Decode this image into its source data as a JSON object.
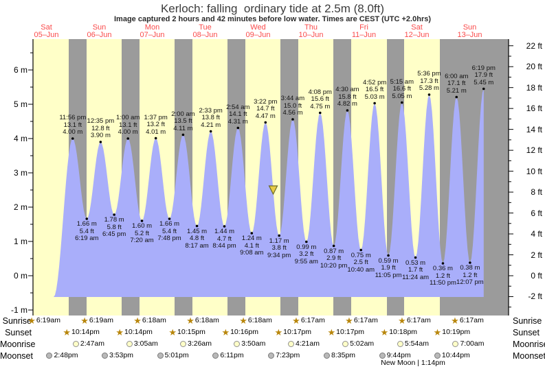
{
  "title": "Kerloch: falling  ordinary tide at 2.5m (8.0ft)",
  "subtitle": "Image captured 2 hours and 42 minutes before low water. Times are CEST (UTC +2.0hrs)",
  "days": [
    {
      "label": "Sat",
      "date": "05–Jun"
    },
    {
      "label": "Sun",
      "date": "06–Jun"
    },
    {
      "label": "Mon",
      "date": "07–Jun"
    },
    {
      "label": "Tue",
      "date": "08–Jun"
    },
    {
      "label": "Wed",
      "date": "09–Jun"
    },
    {
      "label": "Thu",
      "date": "10–Jun"
    },
    {
      "label": "Fri",
      "date": "11–Jun"
    },
    {
      "label": "Sat",
      "date": "12–Jun"
    },
    {
      "label": "Sun",
      "date": "13–Jun"
    }
  ],
  "chart_data": {
    "type": "area",
    "title": "Kerloch: falling  ordinary tide at 2.5m (8.0ft)",
    "ylabel_left": "meters",
    "ylabel_right": "feet",
    "ylim_m": [
      -1,
      6
    ],
    "ylim_ft": [
      -2,
      22
    ],
    "x_axis": "dates 05-Jun to 13-Jun, gridless, gray night bands from sunset to sunrise",
    "tide_events": [
      {
        "kind": "high",
        "day": 0,
        "time": "11:56 pm",
        "m": 4.0,
        "ft": 13.1
      },
      {
        "kind": "low",
        "day": 1,
        "time": "6:19 am",
        "m": 1.66,
        "ft": 5.4
      },
      {
        "kind": "high",
        "day": 1,
        "time": "12:35 pm",
        "m": 3.9,
        "ft": 12.8
      },
      {
        "kind": "low",
        "day": 1,
        "time": "6:45 pm",
        "m": 1.78,
        "ft": 5.8
      },
      {
        "kind": "high",
        "day": 2,
        "time": "1:00 am",
        "m": 4.0,
        "ft": 13.1
      },
      {
        "kind": "low",
        "day": 2,
        "time": "7:20 am",
        "m": 1.6,
        "ft": 5.2
      },
      {
        "kind": "high",
        "day": 2,
        "time": "1:37 pm",
        "m": 4.01,
        "ft": 13.2
      },
      {
        "kind": "low",
        "day": 2,
        "time": "7:48 pm",
        "m": 1.66,
        "ft": 5.4
      },
      {
        "kind": "high",
        "day": 3,
        "time": "2:00 am",
        "m": 4.11,
        "ft": 13.5
      },
      {
        "kind": "low",
        "day": 3,
        "time": "8:17 am",
        "m": 1.45,
        "ft": 4.8
      },
      {
        "kind": "high",
        "day": 3,
        "time": "2:33 pm",
        "m": 4.21,
        "ft": 13.8
      },
      {
        "kind": "low",
        "day": 3,
        "time": "8:44 pm",
        "m": 1.44,
        "ft": 4.7
      },
      {
        "kind": "high",
        "day": 4,
        "time": "2:54 am",
        "m": 4.31,
        "ft": 14.1
      },
      {
        "kind": "low",
        "day": 4,
        "time": "9:08 am",
        "m": 1.24,
        "ft": 4.1
      },
      {
        "kind": "high",
        "day": 4,
        "time": "3:22 pm",
        "m": 4.47,
        "ft": 14.7
      },
      {
        "kind": "low",
        "day": 4,
        "time": "9:34 pm",
        "m": 1.17,
        "ft": 3.8
      },
      {
        "kind": "high",
        "day": 5,
        "time": "3:44 am",
        "m": 4.56,
        "ft": 15.0
      },
      {
        "kind": "low",
        "day": 5,
        "time": "9:55 am",
        "m": 0.99,
        "ft": 3.2
      },
      {
        "kind": "high",
        "day": 5,
        "time": "4:08 pm",
        "m": 4.75,
        "ft": 15.6
      },
      {
        "kind": "low",
        "day": 5,
        "time": "10:20 pm",
        "m": 0.87,
        "ft": 2.9
      },
      {
        "kind": "high",
        "day": 6,
        "time": "4:30 am",
        "m": 4.82,
        "ft": 15.8
      },
      {
        "kind": "low",
        "day": 6,
        "time": "10:40 am",
        "m": 0.75,
        "ft": 2.5
      },
      {
        "kind": "high",
        "day": 6,
        "time": "4:52 pm",
        "m": 5.03,
        "ft": 16.5
      },
      {
        "kind": "low",
        "day": 6,
        "time": "11:05 pm",
        "m": 0.59,
        "ft": 1.9
      },
      {
        "kind": "high",
        "day": 7,
        "time": "5:15 am",
        "m": 5.05,
        "ft": 16.6
      },
      {
        "kind": "low",
        "day": 7,
        "time": "11:24 am",
        "m": 0.53,
        "ft": 1.7
      },
      {
        "kind": "high",
        "day": 7,
        "time": "5:36 pm",
        "m": 5.28,
        "ft": 17.3
      },
      {
        "kind": "low",
        "day": 7,
        "time": "11:50 pm",
        "m": 0.36,
        "ft": 1.2
      },
      {
        "kind": "high",
        "day": 8,
        "time": "6:00 am",
        "m": 5.21,
        "ft": 17.1
      },
      {
        "kind": "low",
        "day": 8,
        "time": "12:07 pm",
        "m": 0.38,
        "ft": 1.2
      },
      {
        "kind": "high",
        "day": 8,
        "time": "6:19 pm",
        "m": 5.45,
        "ft": 17.9
      }
    ],
    "current_marker": {
      "day": 4,
      "time": "6:52 pm",
      "level_m": 2.5
    }
  },
  "astro": {
    "row_labels": [
      "Sunrise",
      "Sunset",
      "Moonrise",
      "Moonset"
    ],
    "sunrise": [
      {
        "day": 0,
        "time": "6:19am"
      },
      {
        "day": 1,
        "time": "6:19am"
      },
      {
        "day": 2,
        "time": "6:18am"
      },
      {
        "day": 3,
        "time": "6:18am"
      },
      {
        "day": 4,
        "time": "6:18am"
      },
      {
        "day": 5,
        "time": "6:17am"
      },
      {
        "day": 6,
        "time": "6:17am"
      },
      {
        "day": 7,
        "time": "6:17am"
      },
      {
        "day": 8,
        "time": "6:17am"
      }
    ],
    "sunset": [
      {
        "day": 0,
        "time": "10:14pm"
      },
      {
        "day": 1,
        "time": "10:14pm"
      },
      {
        "day": 2,
        "time": "10:15pm"
      },
      {
        "day": 3,
        "time": "10:16pm"
      },
      {
        "day": 4,
        "time": "10:17pm"
      },
      {
        "day": 5,
        "time": "10:17pm"
      },
      {
        "day": 6,
        "time": "10:18pm"
      },
      {
        "day": 7,
        "time": "10:19pm"
      }
    ],
    "moonrise": [
      {
        "day": 1,
        "time": "2:47am"
      },
      {
        "day": 2,
        "time": "3:05am"
      },
      {
        "day": 3,
        "time": "3:26am"
      },
      {
        "day": 4,
        "time": "3:50am"
      },
      {
        "day": 5,
        "time": "4:21am"
      },
      {
        "day": 6,
        "time": "5:02am"
      },
      {
        "day": 7,
        "time": "5:54am"
      },
      {
        "day": 8,
        "time": "7:00am"
      }
    ],
    "moonset": [
      {
        "day": 0,
        "time": "2:48pm"
      },
      {
        "day": 1,
        "time": "3:53pm"
      },
      {
        "day": 2,
        "time": "5:01pm"
      },
      {
        "day": 3,
        "time": "6:11pm"
      },
      {
        "day": 4,
        "time": "7:23pm"
      },
      {
        "day": 5,
        "time": "8:35pm"
      },
      {
        "day": 6,
        "time": "9:44pm"
      },
      {
        "day": 7,
        "time": "10:44pm"
      }
    ],
    "new_moon": "New Moon | 1:14pm"
  },
  "colors": {
    "day_bg": "#ffffc8",
    "night_bg": "#9b9b9b",
    "tide_fill": "#a9aefa",
    "day_label": "#fa4a4a",
    "star": "#b8860b",
    "marker_fill": "#e8cb43",
    "marker_stroke": "#6b6b2a"
  }
}
